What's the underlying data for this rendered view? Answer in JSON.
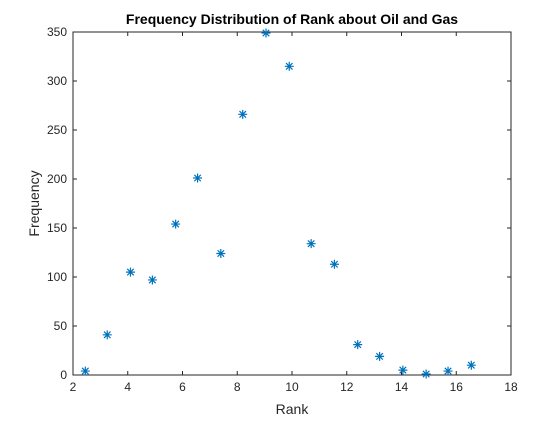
{
  "chart_data": {
    "type": "scatter",
    "title": "Frequency Distribution of Rank about Oil and Gas",
    "xlabel": "Rank",
    "ylabel": "Frequency",
    "xlim": [
      2,
      18
    ],
    "ylim": [
      0,
      350
    ],
    "xticks": [
      "2",
      "4",
      "6",
      "8",
      "10",
      "12",
      "14",
      "16",
      "18"
    ],
    "yticks": [
      "0",
      "50",
      "100",
      "150",
      "200",
      "250",
      "300",
      "350"
    ],
    "marker": "asterisk",
    "grid": false,
    "legend": "none",
    "colors": {
      "marker": "#0072BD",
      "axes": "#262626",
      "title": "#000000"
    },
    "series": [
      {
        "x": [
          2.45,
          3.25,
          4.1,
          4.9,
          5.75,
          6.55,
          7.4,
          8.2,
          9.05,
          9.9,
          10.7,
          11.55,
          12.4,
          13.2,
          14.05,
          14.9,
          15.7,
          16.55
        ],
        "y": [
          4,
          41,
          105,
          97,
          154,
          201,
          124,
          266,
          349,
          315,
          134,
          113,
          31,
          19,
          5,
          1,
          4,
          10
        ]
      }
    ]
  }
}
